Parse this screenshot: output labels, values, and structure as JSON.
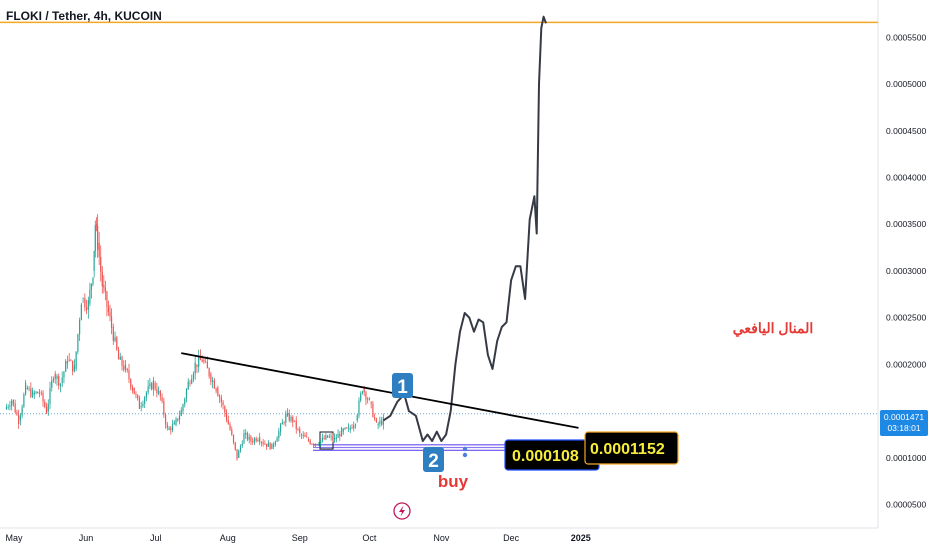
{
  "header": {
    "title": "FLOKI / Tether, 4h, KUCOIN"
  },
  "colors": {
    "candle_up": "#26a69a",
    "candle_down": "#ef5350",
    "projection": "#363a45",
    "trendline": "#000000",
    "resistance": "#f5a623",
    "support_band": "#7b68ee",
    "marker": "#2e7fc1",
    "buy": "#e53935",
    "arabic_text": "#e53935",
    "price_badge": "#1e88e5",
    "dashed_price_line": "#6fa8dc"
  },
  "chart_data": {
    "type": "candlestick",
    "title": "FLOKI / Tether, 4h, KUCOIN",
    "symbol": "FLOKI/USDT",
    "interval": "4h",
    "exchange": "KUCOIN",
    "x_ticks": [
      "May",
      "Jun",
      "Jul",
      "Aug",
      "Sep",
      "Oct",
      "Nov",
      "Dec",
      "2025"
    ],
    "y_ticks": [
      "0.0005500",
      "0.0005000",
      "0.0004500",
      "0.0004000",
      "0.0003500",
      "0.0003000",
      "0.0002500",
      "0.0002000",
      "0.0001000",
      "0.0000500"
    ],
    "ylim": [
      4e-05,
      0.00059
    ],
    "grid": false,
    "current_price": "0.0001471",
    "countdown": "03:18:01",
    "series": [
      {
        "kind": "ohlc",
        "values": [
          {
            "x": "Apr 27",
            "c": 0.000152
          },
          {
            "x": "Apr 30",
            "c": 0.000162
          },
          {
            "x": "May 3",
            "c": 0.00014
          },
          {
            "x": "May 6",
            "c": 0.000175
          },
          {
            "x": "May 9",
            "c": 0.000168
          },
          {
            "x": "May 12",
            "c": 0.00017
          },
          {
            "x": "May 15",
            "c": 0.00015
          },
          {
            "x": "May 18",
            "c": 0.00019
          },
          {
            "x": "May 21",
            "c": 0.00018
          },
          {
            "x": "May 24",
            "c": 0.000205
          },
          {
            "x": "May 27",
            "c": 0.000195
          },
          {
            "x": "May 30",
            "c": 0.00027
          },
          {
            "x": "Jun 2",
            "c": 0.000265
          },
          {
            "x": "Jun 4",
            "c": 0.0003
          },
          {
            "x": "Jun 5",
            "c": 0.00035
          },
          {
            "x": "Jun 6",
            "c": 0.00033
          },
          {
            "x": "Jun 8",
            "c": 0.000285
          },
          {
            "x": "Jun 12",
            "c": 0.00024
          },
          {
            "x": "Jun 15",
            "c": 0.000205
          },
          {
            "x": "Jun 18",
            "c": 0.000195
          },
          {
            "x": "Jun 21",
            "c": 0.000175
          },
          {
            "x": "Jun 24",
            "c": 0.000155
          },
          {
            "x": "Jun 27",
            "c": 0.00017
          },
          {
            "x": "Jun 30",
            "c": 0.00018
          },
          {
            "x": "Jul 3",
            "c": 0.000165
          },
          {
            "x": "Jul 6",
            "c": 0.00013
          },
          {
            "x": "Jul 9",
            "c": 0.000135
          },
          {
            "x": "Jul 12",
            "c": 0.00015
          },
          {
            "x": "Jul 15",
            "c": 0.00018
          },
          {
            "x": "Jul 18",
            "c": 0.0002
          },
          {
            "x": "Jul 21",
            "c": 0.000205
          },
          {
            "x": "Jul 24",
            "c": 0.00019
          },
          {
            "x": "Jul 27",
            "c": 0.000175
          },
          {
            "x": "Jul 30",
            "c": 0.000155
          },
          {
            "x": "Aug 2",
            "c": 0.00013
          },
          {
            "x": "Aug 5",
            "c": 0.0001
          },
          {
            "x": "Aug 8",
            "c": 0.000125
          },
          {
            "x": "Aug 11",
            "c": 0.000118
          },
          {
            "x": "Aug 14",
            "c": 0.000122
          },
          {
            "x": "Aug 17",
            "c": 0.000115
          },
          {
            "x": "Aug 20",
            "c": 0.000112
          },
          {
            "x": "Aug 23",
            "c": 0.000128
          },
          {
            "x": "Aug 26",
            "c": 0.000145
          },
          {
            "x": "Aug 29",
            "c": 0.00014
          },
          {
            "x": "Sep 1",
            "c": 0.000125
          },
          {
            "x": "Sep 4",
            "c": 0.00012
          },
          {
            "x": "Sep 7",
            "c": 0.000115
          },
          {
            "x": "Sep 10",
            "c": 0.000118
          },
          {
            "x": "Sep 13",
            "c": 0.000122
          },
          {
            "x": "Sep 16",
            "c": 0.00012
          },
          {
            "x": "Sep 19",
            "c": 0.000128
          },
          {
            "x": "Sep 22",
            "c": 0.00013
          },
          {
            "x": "Sep 25",
            "c": 0.00014
          },
          {
            "x": "Sep 28",
            "c": 0.000175
          },
          {
            "x": "Oct 1",
            "c": 0.00016
          },
          {
            "x": "Oct 4",
            "c": 0.000135
          },
          {
            "x": "Oct 7",
            "c": 0.00014
          }
        ]
      },
      {
        "kind": "projection",
        "values": [
          {
            "x": "Oct 7",
            "y": 0.00014
          },
          {
            "x": "Oct 10",
            "y": 0.000145
          },
          {
            "x": "Oct 13",
            "y": 0.00016
          },
          {
            "x": "Oct 16",
            "y": 0.000168
          },
          {
            "x": "Oct 18",
            "y": 0.00015
          },
          {
            "x": "Oct 21",
            "y": 0.000145
          },
          {
            "x": "Oct 24",
            "y": 0.000118
          },
          {
            "x": "Oct 26",
            "y": 0.000125
          },
          {
            "x": "Oct 28",
            "y": 0.000118
          },
          {
            "x": "Oct 30",
            "y": 0.000128
          },
          {
            "x": "Nov 1",
            "y": 0.000118
          },
          {
            "x": "Nov 3",
            "y": 0.000125
          },
          {
            "x": "Nov 5",
            "y": 0.00015
          },
          {
            "x": "Nov 7",
            "y": 0.0002
          },
          {
            "x": "Nov 9",
            "y": 0.000235
          },
          {
            "x": "Nov 11",
            "y": 0.000255
          },
          {
            "x": "Nov 13",
            "y": 0.00025
          },
          {
            "x": "Nov 15",
            "y": 0.000235
          },
          {
            "x": "Nov 17",
            "y": 0.000248
          },
          {
            "x": "Nov 19",
            "y": 0.000245
          },
          {
            "x": "Nov 21",
            "y": 0.00021
          },
          {
            "x": "Nov 23",
            "y": 0.000195
          },
          {
            "x": "Nov 25",
            "y": 0.000225
          },
          {
            "x": "Nov 27",
            "y": 0.00024
          },
          {
            "x": "Nov 29",
            "y": 0.000245
          },
          {
            "x": "Dec 1",
            "y": 0.00029
          },
          {
            "x": "Dec 3",
            "y": 0.000305
          },
          {
            "x": "Dec 5",
            "y": 0.000305
          },
          {
            "x": "Dec 7",
            "y": 0.00027
          },
          {
            "x": "Dec 9",
            "y": 0.000355
          },
          {
            "x": "Dec 11",
            "y": 0.00038
          },
          {
            "x": "Dec 12",
            "y": 0.00034
          },
          {
            "x": "Dec 13",
            "y": 0.0005
          },
          {
            "x": "Dec 14",
            "y": 0.00056
          },
          {
            "x": "Dec 15",
            "y": 0.000572
          },
          {
            "x": "Dec 16",
            "y": 0.000565
          }
        ]
      }
    ],
    "annotations": {
      "resistance_lines": [
        0.000592,
        0.000566
      ],
      "support_zone": [
        0.000108,
        0.000114
      ],
      "trendline": {
        "from": {
          "x": "Jul 12",
          "y": 0.000212
        },
        "to": {
          "x": "Dec 30",
          "y": 0.000132
        }
      },
      "markers": [
        "1",
        "2"
      ],
      "buy_label": "buy",
      "price_label_1": "0.000108",
      "price_label_2": "0.0001152",
      "arabic_text": "المنال اليافعي"
    }
  }
}
